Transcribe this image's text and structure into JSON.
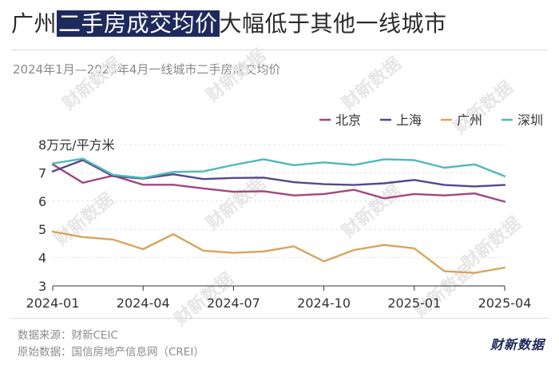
{
  "header": {
    "title_prefix": "广州",
    "title_highlight": "二手房成交均价",
    "title_suffix": "大幅低于其他一线城市",
    "subtitle": "2024年1月—2025年4月一线城市二手房成交均价"
  },
  "footer": {
    "source": "数据来源：财新CEIC",
    "origin": "原始数据：国信房地产信息网（CREI）",
    "brand": "财新数据"
  },
  "watermark": "财新数据",
  "colors": {
    "北京": "#a3477c",
    "上海": "#53488f",
    "广州": "#d9a35c",
    "深圳": "#4fb8ba",
    "grid": "#e3e3e3",
    "axis": "#333333"
  },
  "chart_data": {
    "type": "line",
    "title": "广州二手房成交均价大幅低于其他一线城市",
    "subtitle": "2024年1月—2025年4月一线城市二手房成交均价",
    "ylabel": "8万元/平方米",
    "xlabel": "",
    "ylim": [
      3,
      8
    ],
    "yticks": [
      "3",
      "4",
      "5",
      "6",
      "7",
      "8万元/平方米"
    ],
    "yticks_values": [
      3,
      4,
      5,
      6,
      7,
      8
    ],
    "xticks": [
      "2024-01",
      "2024-04",
      "2024-07",
      "2024-10",
      "2025-01",
      "2025-04"
    ],
    "xticks_index": [
      0,
      3,
      6,
      9,
      12,
      15
    ],
    "legend_position": "top-right",
    "categories": [
      "2024-01",
      "2024-02",
      "2024-03",
      "2024-04",
      "2024-05",
      "2024-06",
      "2024-07",
      "2024-08",
      "2024-09",
      "2024-10",
      "2024-11",
      "2024-12",
      "2025-01",
      "2025-02",
      "2025-03",
      "2025-04"
    ],
    "series": [
      {
        "name": "北京",
        "values": [
          7.3,
          6.65,
          6.9,
          6.58,
          6.58,
          6.45,
          6.33,
          6.35,
          6.2,
          6.25,
          6.4,
          6.1,
          6.25,
          6.2,
          6.27,
          5.98
        ]
      },
      {
        "name": "上海",
        "values": [
          7.05,
          7.45,
          6.88,
          6.8,
          6.95,
          6.78,
          6.82,
          6.83,
          6.67,
          6.6,
          6.57,
          6.63,
          6.75,
          6.57,
          6.52,
          6.57
        ]
      },
      {
        "name": "广州",
        "values": [
          4.92,
          4.73,
          4.64,
          4.3,
          4.83,
          4.25,
          4.17,
          4.22,
          4.4,
          3.87,
          4.27,
          4.45,
          4.33,
          3.52,
          3.46,
          3.65
        ]
      },
      {
        "name": "深圳",
        "values": [
          7.33,
          7.5,
          6.93,
          6.82,
          7.03,
          7.05,
          7.28,
          7.48,
          7.27,
          7.37,
          7.28,
          7.48,
          7.45,
          7.18,
          7.3,
          6.88
        ]
      }
    ]
  }
}
